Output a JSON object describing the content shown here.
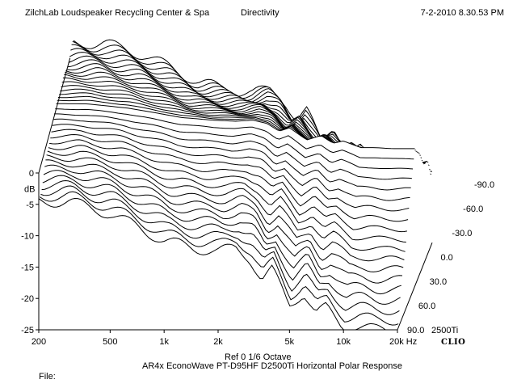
{
  "header": {
    "left": "ZilchLab Loudspeaker Recycling Center & Spa",
    "center": "Directivity",
    "right": "7-2-2010 8.30.53 PM"
  },
  "footer": {
    "ref_line": "Ref 0   1/6 Octave",
    "subtitle": "AR4x EconoWave PT-D95HF D2500Ti Horizontal Polar Response",
    "file_label": "File:"
  },
  "logo_text": "CLIO",
  "chart_data": {
    "type": "waterfall",
    "title": "Directivity",
    "subtitle": "AR4x EconoWave PT-D95HF D2500Ti Horizontal Polar Response",
    "ylabel": "dB",
    "xlim": [
      200,
      20000
    ],
    "ylim": [
      -25,
      0
    ],
    "x_scale": "log",
    "x_ticks": [
      "200",
      "500",
      "1k",
      "2k",
      "5k",
      "10k",
      "20k Hz"
    ],
    "x_tick_values": [
      200,
      500,
      1000,
      2000,
      5000,
      10000,
      20000
    ],
    "y_ticks": [
      "0",
      "-5",
      "-10",
      "-15",
      "-20",
      "-25"
    ],
    "y_tick_values": [
      0,
      -5,
      -10,
      -15,
      -20,
      -25
    ],
    "z_axis_name": "2500Ti",
    "z_ticks": [
      "90.0",
      "60.0",
      "30.0",
      "0.0",
      "-30.0",
      "-60.0",
      "-90.0"
    ],
    "z_tick_values": [
      90,
      60,
      30,
      0,
      -30,
      -60,
      -90
    ],
    "z_range": [
      90,
      -90
    ],
    "curve_count": 37,
    "front_curve": {
      "angle": 90,
      "freqs": [
        200,
        300,
        500,
        700,
        1000,
        1500,
        2000,
        2500,
        3000,
        3500,
        4000,
        5000,
        6000,
        7000,
        8000,
        10000,
        12000,
        15000,
        20000
      ],
      "db": [
        -4.5,
        -4.6,
        -6.5,
        -8.5,
        -10.8,
        -12.0,
        -12.5,
        -12.0,
        -13.5,
        -17.0,
        -15.5,
        -21.0,
        -19.0,
        -22.5,
        -21.5,
        -24.5,
        -24.5,
        -25.0,
        -25.0
      ]
    },
    "grid": false
  }
}
